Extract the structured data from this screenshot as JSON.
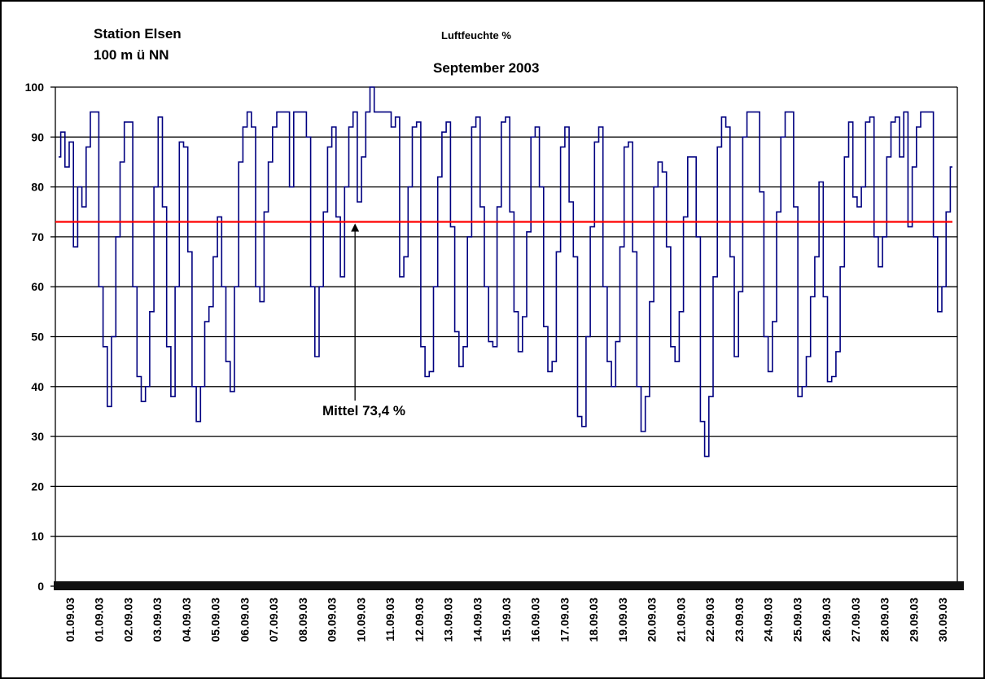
{
  "header": {
    "station": "Station Elsen",
    "elevation": "100 m ü NN"
  },
  "chart_data": {
    "type": "line",
    "title": "Luftfeuchte %",
    "subtitle": "September 2003",
    "ylim": [
      0,
      100
    ],
    "yticks": [
      0,
      10,
      20,
      30,
      40,
      50,
      60,
      70,
      80,
      90,
      100
    ],
    "grid": true,
    "xticks": [
      "01.09.03",
      "01.09.03",
      "02.09.03",
      "03.09.03",
      "04.09.03",
      "05.09.03",
      "06.09.03",
      "07.09.03",
      "08.09.03",
      "09.09.03",
      "10.09.03",
      "11.09.03",
      "12.09.03",
      "13.09.03",
      "14.09.03",
      "15.09.03",
      "16.09.03",
      "17.09.03",
      "18.09.03",
      "19.09.03",
      "20.09.03",
      "21.09.03",
      "22.09.03",
      "23.09.03",
      "24.09.03",
      "25.09.03",
      "26.09.03",
      "27.09.03",
      "28.09.03",
      "29.09.03",
      "30.09.03"
    ],
    "series": [
      {
        "color": "#000080",
        "values": [
          86,
          91,
          84,
          89,
          68,
          80,
          76,
          88,
          95,
          95,
          60,
          48,
          36,
          50,
          70,
          85,
          93,
          93,
          60,
          42,
          37,
          40,
          55,
          80,
          94,
          76,
          48,
          38,
          60,
          89,
          88,
          67,
          40,
          33,
          40,
          53,
          56,
          66,
          74,
          60,
          45,
          39,
          60,
          85,
          92,
          95,
          92,
          60,
          57,
          75,
          85,
          92,
          95,
          95,
          95,
          80,
          95,
          95,
          95,
          90,
          60,
          46,
          60,
          75,
          88,
          92,
          74,
          62,
          80,
          92,
          95,
          77,
          86,
          95,
          100,
          95,
          95,
          95,
          95,
          92,
          94,
          62,
          66,
          80,
          92,
          93,
          48,
          42,
          43,
          60,
          82,
          91,
          93,
          72,
          51,
          44,
          48,
          70,
          92,
          94,
          76,
          60,
          49,
          48,
          76,
          93,
          94,
          75,
          55,
          47,
          54,
          71,
          90,
          92,
          80,
          52,
          43,
          45,
          67,
          88,
          92,
          77,
          66,
          34,
          32,
          50,
          72,
          89,
          92,
          60,
          45,
          40,
          49,
          68,
          88,
          89,
          67,
          40,
          31,
          38,
          57,
          80,
          85,
          83,
          68,
          48,
          45,
          55,
          74,
          86,
          86,
          70,
          33,
          26,
          38,
          62,
          88,
          94,
          92,
          66,
          46,
          59,
          90,
          95,
          95,
          95,
          79,
          50,
          43,
          53,
          75,
          90,
          95,
          95,
          76,
          38,
          40,
          46,
          58,
          66,
          81,
          58,
          41,
          42,
          47,
          64,
          86,
          93,
          78,
          76,
          80,
          93,
          94,
          70,
          64,
          70,
          86,
          93,
          94,
          86,
          95,
          72,
          84,
          92,
          95,
          95,
          95,
          70,
          55,
          60,
          75,
          84
        ]
      },
      {
        "name": "Mittel",
        "color": "#ff0000",
        "values": [
          73,
          73
        ]
      }
    ],
    "annotations": [
      {
        "text": "Mittel 73,4 %",
        "x": 10.3,
        "y": 73
      }
    ]
  }
}
